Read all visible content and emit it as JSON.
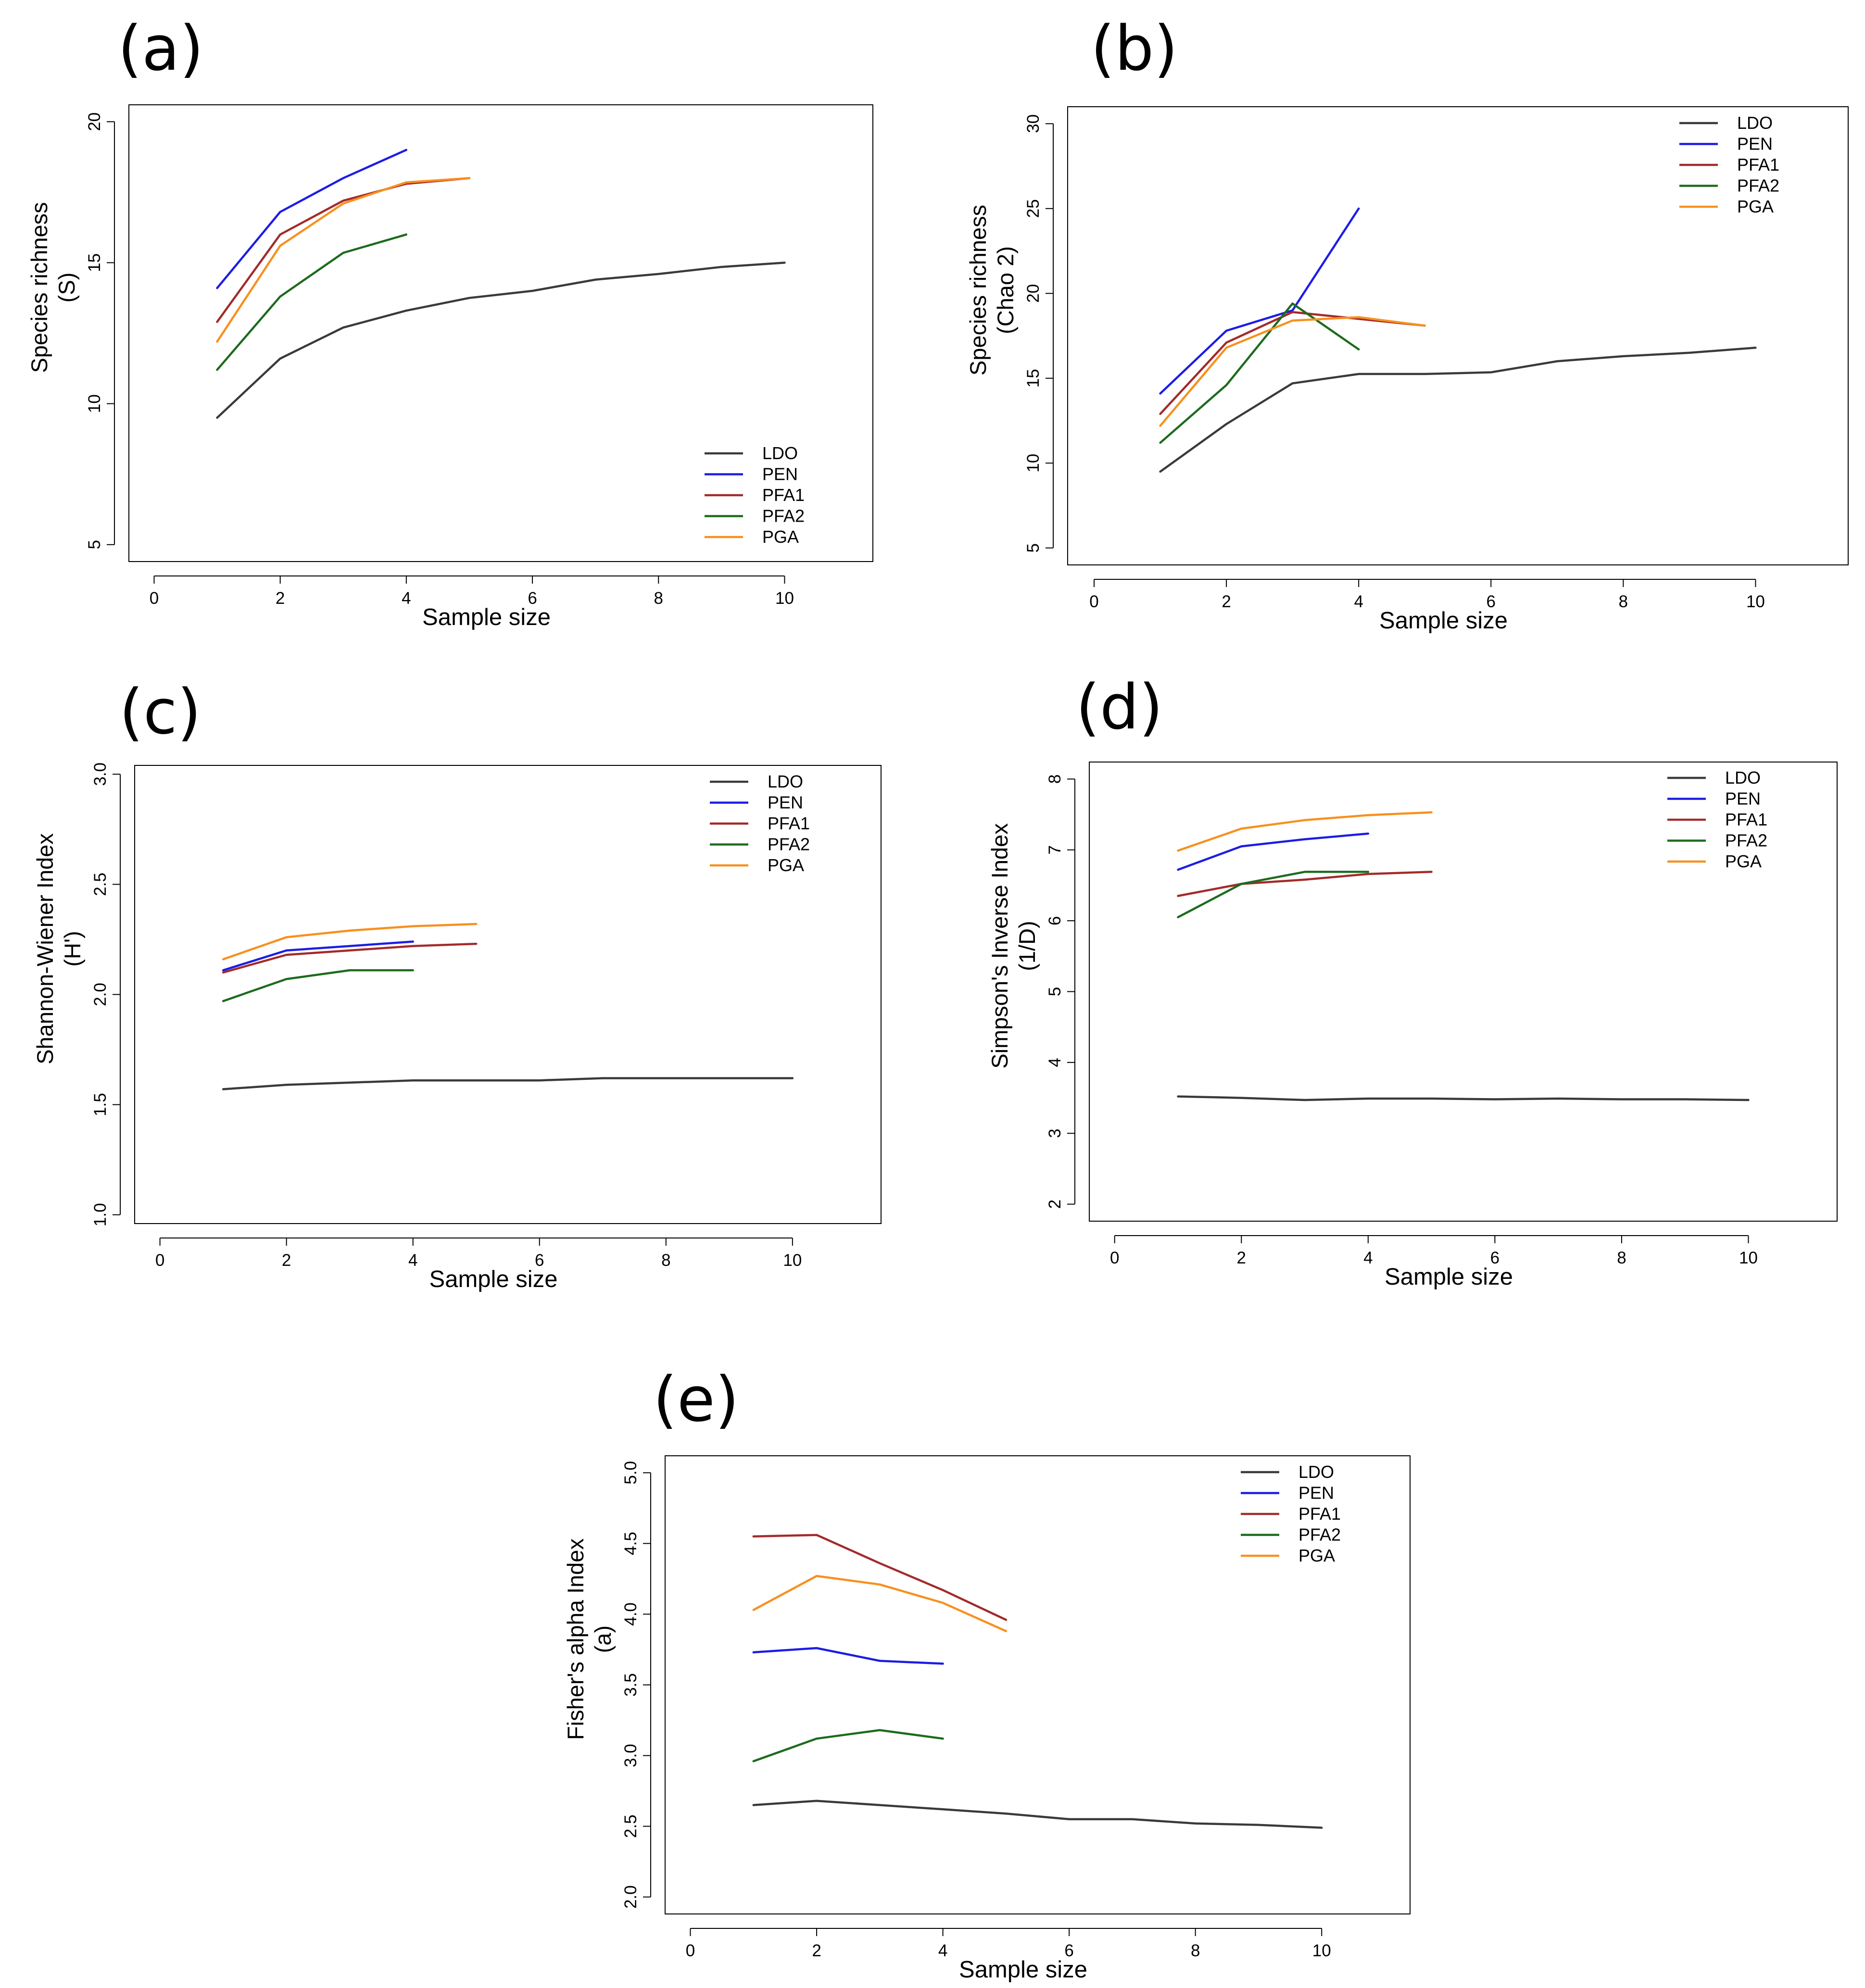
{
  "colors": {
    "LDO": "#3a3a3a",
    "PEN": "#1c1ce6",
    "PFA1": "#a32a2a",
    "PFA2": "#1d6b1d",
    "PGA": "#f7901e"
  },
  "chart_data": [
    {
      "id": "a",
      "label": "(a)",
      "type": "line",
      "xlabel": "Sample size",
      "ylabel": [
        "Species richness",
        "(S)"
      ],
      "xticks": [
        0,
        2,
        4,
        6,
        8,
        10
      ],
      "yticks": [
        5,
        10,
        15,
        20
      ],
      "xlim": [
        -0.4,
        11.4
      ],
      "ylim": [
        4.4,
        20.6
      ],
      "legend_position": "bottom-right",
      "series": [
        {
          "name": "LDO",
          "x": [
            1,
            2,
            3,
            4,
            5,
            6,
            7,
            8,
            9,
            10
          ],
          "y": [
            9.5,
            11.6,
            12.7,
            13.3,
            13.75,
            14.0,
            14.4,
            14.6,
            14.85,
            15.0
          ]
        },
        {
          "name": "PEN",
          "x": [
            1,
            2,
            3,
            4
          ],
          "y": [
            14.1,
            16.8,
            18.0,
            19.0
          ]
        },
        {
          "name": "PFA1",
          "x": [
            1,
            2,
            3,
            4,
            5
          ],
          "y": [
            12.9,
            16.0,
            17.2,
            17.8,
            18.0
          ]
        },
        {
          "name": "PFA2",
          "x": [
            1,
            2,
            3,
            4
          ],
          "y": [
            11.2,
            13.8,
            15.35,
            16.0
          ]
        },
        {
          "name": "PGA",
          "x": [
            1,
            2,
            3,
            4,
            5
          ],
          "y": [
            12.2,
            15.6,
            17.1,
            17.85,
            18.0
          ]
        }
      ]
    },
    {
      "id": "b",
      "label": "(b)",
      "type": "line",
      "xlabel": "Sample size",
      "ylabel": [
        "Species richness",
        "(Chao 2)"
      ],
      "xticks": [
        0,
        2,
        4,
        6,
        8,
        10
      ],
      "yticks": [
        5,
        10,
        15,
        20,
        25,
        30
      ],
      "xlim": [
        -0.4,
        11.4
      ],
      "ylim": [
        4.0,
        31.0
      ],
      "legend_position": "top-right",
      "series": [
        {
          "name": "LDO",
          "x": [
            1,
            2,
            3,
            4,
            5,
            6,
            7,
            8,
            9,
            10
          ],
          "y": [
            9.5,
            12.3,
            14.7,
            15.25,
            15.25,
            15.35,
            16.0,
            16.3,
            16.5,
            16.8
          ]
        },
        {
          "name": "PEN",
          "x": [
            1,
            2,
            3,
            4
          ],
          "y": [
            14.1,
            17.8,
            19.0,
            25.0
          ]
        },
        {
          "name": "PFA1",
          "x": [
            1,
            2,
            3,
            4,
            5
          ],
          "y": [
            12.9,
            17.1,
            18.9,
            18.5,
            18.1
          ]
        },
        {
          "name": "PFA2",
          "x": [
            1,
            2,
            3,
            4
          ],
          "y": [
            11.2,
            14.6,
            19.4,
            16.7
          ]
        },
        {
          "name": "PGA",
          "x": [
            1,
            2,
            3,
            4,
            5
          ],
          "y": [
            12.2,
            16.8,
            18.4,
            18.6,
            18.1
          ]
        }
      ]
    },
    {
      "id": "c",
      "label": "(c)",
      "type": "line",
      "xlabel": "Sample size",
      "ylabel": [
        "Shannon-Wiener Index",
        "(H')"
      ],
      "xticks": [
        0,
        2,
        4,
        6,
        8,
        10
      ],
      "yticks": [
        "1.0",
        "1.5",
        "2.0",
        "2.5",
        "3.0"
      ],
      "xlim": [
        -0.4,
        11.4
      ],
      "ylim": [
        0.96,
        3.04
      ],
      "legend_position": "top-right",
      "series": [
        {
          "name": "LDO",
          "x": [
            1,
            2,
            3,
            4,
            5,
            6,
            7,
            8,
            9,
            10
          ],
          "y": [
            1.57,
            1.59,
            1.6,
            1.61,
            1.61,
            1.61,
            1.62,
            1.62,
            1.62,
            1.62
          ]
        },
        {
          "name": "PEN",
          "x": [
            1,
            2,
            3,
            4
          ],
          "y": [
            2.11,
            2.2,
            2.22,
            2.24
          ]
        },
        {
          "name": "PFA1",
          "x": [
            1,
            2,
            3,
            4,
            5
          ],
          "y": [
            2.1,
            2.18,
            2.2,
            2.22,
            2.23
          ]
        },
        {
          "name": "PFA2",
          "x": [
            1,
            2,
            3,
            4
          ],
          "y": [
            1.97,
            2.07,
            2.11,
            2.11
          ]
        },
        {
          "name": "PGA",
          "x": [
            1,
            2,
            3,
            4,
            5
          ],
          "y": [
            2.16,
            2.26,
            2.29,
            2.31,
            2.32
          ]
        }
      ]
    },
    {
      "id": "d",
      "label": "(d)",
      "type": "line",
      "xlabel": "Sample size",
      "ylabel": [
        "Simpson's Inverse Index",
        "(1/D)"
      ],
      "xticks": [
        0,
        2,
        4,
        6,
        8,
        10
      ],
      "yticks": [
        2,
        3,
        4,
        5,
        6,
        7,
        8
      ],
      "xlim": [
        -0.4,
        11.4
      ],
      "ylim": [
        1.76,
        8.24
      ],
      "legend_position": "top-right",
      "series": [
        {
          "name": "LDO",
          "x": [
            1,
            2,
            3,
            4,
            5,
            6,
            7,
            8,
            9,
            10
          ],
          "y": [
            3.52,
            3.5,
            3.47,
            3.49,
            3.49,
            3.48,
            3.49,
            3.48,
            3.48,
            3.47
          ]
        },
        {
          "name": "PEN",
          "x": [
            1,
            2,
            3,
            4
          ],
          "y": [
            6.72,
            7.05,
            7.15,
            7.23
          ]
        },
        {
          "name": "PFA1",
          "x": [
            1,
            2,
            3,
            4,
            5
          ],
          "y": [
            6.35,
            6.52,
            6.58,
            6.66,
            6.69
          ]
        },
        {
          "name": "PFA2",
          "x": [
            1,
            2,
            3,
            4
          ],
          "y": [
            6.05,
            6.52,
            6.69,
            6.69
          ]
        },
        {
          "name": "PGA",
          "x": [
            1,
            2,
            3,
            4,
            5
          ],
          "y": [
            6.99,
            7.3,
            7.42,
            7.49,
            7.53
          ]
        }
      ]
    },
    {
      "id": "e",
      "label": "(e)",
      "type": "line",
      "xlabel": "Sample size",
      "ylabel": [
        "Fisher's alpha Index",
        "(a)"
      ],
      "xticks": [
        0,
        2,
        4,
        6,
        8,
        10
      ],
      "yticks": [
        "2.0",
        "2.5",
        "3.0",
        "3.5",
        "4.0",
        "4.5",
        "5.0"
      ],
      "xlim": [
        -0.4,
        11.4
      ],
      "ylim": [
        1.88,
        5.12
      ],
      "legend_position": "top-right",
      "series": [
        {
          "name": "LDO",
          "x": [
            1,
            2,
            3,
            4,
            5,
            6,
            7,
            8,
            9,
            10
          ],
          "y": [
            2.65,
            2.68,
            2.65,
            2.62,
            2.59,
            2.55,
            2.55,
            2.52,
            2.51,
            2.49
          ]
        },
        {
          "name": "PEN",
          "x": [
            1,
            2,
            3,
            4
          ],
          "y": [
            3.73,
            3.76,
            3.67,
            3.65
          ]
        },
        {
          "name": "PFA1",
          "x": [
            1,
            2,
            3,
            4,
            5
          ],
          "y": [
            4.55,
            4.56,
            4.36,
            4.17,
            3.96
          ]
        },
        {
          "name": "PFA2",
          "x": [
            1,
            2,
            3,
            4
          ],
          "y": [
            2.96,
            3.12,
            3.18,
            3.12
          ]
        },
        {
          "name": "PGA",
          "x": [
            1,
            2,
            3,
            4,
            5
          ],
          "y": [
            4.03,
            4.27,
            4.21,
            4.08,
            3.88
          ]
        }
      ]
    }
  ]
}
